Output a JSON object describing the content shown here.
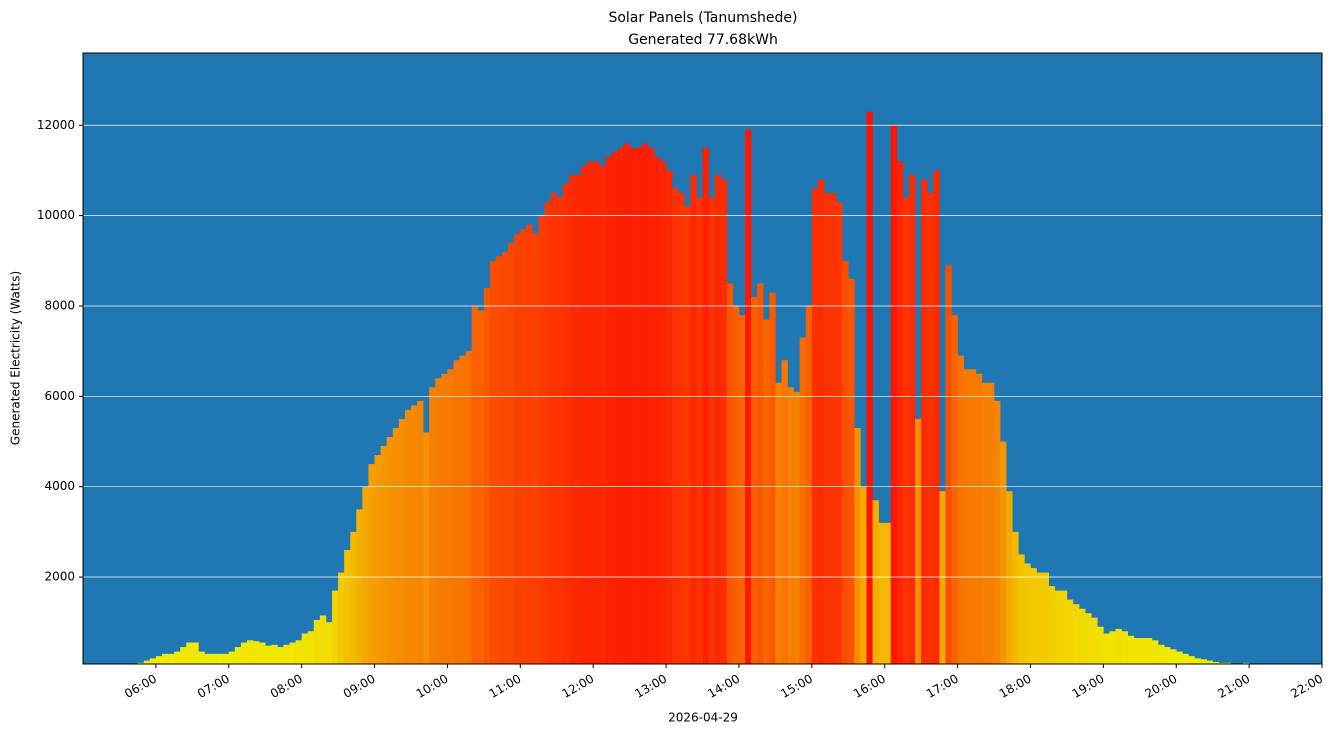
{
  "chart_data": {
    "type": "bar",
    "title": "Solar Panels (Tanumshede)",
    "subtitle": "Generated 77.68kWh",
    "x_label": "2026-04-29",
    "y_label": "Generated Electricity (Watts)",
    "x": [
      "05:10",
      "05:15",
      "05:20",
      "05:25",
      "05:30",
      "05:35",
      "05:40",
      "05:45",
      "05:50",
      "05:55",
      "06:00",
      "06:05",
      "06:10",
      "06:15",
      "06:20",
      "06:25",
      "06:30",
      "06:35",
      "06:40",
      "06:45",
      "06:50",
      "06:55",
      "07:00",
      "07:05",
      "07:10",
      "07:15",
      "07:20",
      "07:25",
      "07:30",
      "07:35",
      "07:40",
      "07:45",
      "07:50",
      "07:55",
      "08:00",
      "08:05",
      "08:10",
      "08:15",
      "08:20",
      "08:25",
      "08:30",
      "08:35",
      "08:40",
      "08:45",
      "08:50",
      "08:55",
      "09:00",
      "09:05",
      "09:10",
      "09:15",
      "09:20",
      "09:25",
      "09:30",
      "09:35",
      "09:40",
      "09:45",
      "09:50",
      "09:55",
      "10:00",
      "10:05",
      "10:10",
      "10:15",
      "10:20",
      "10:25",
      "10:30",
      "10:35",
      "10:40",
      "10:45",
      "10:50",
      "10:55",
      "11:00",
      "11:05",
      "11:10",
      "11:15",
      "11:20",
      "11:25",
      "11:30",
      "11:35",
      "11:40",
      "11:45",
      "11:50",
      "11:55",
      "12:00",
      "12:05",
      "12:10",
      "12:15",
      "12:20",
      "12:25",
      "12:30",
      "12:35",
      "12:40",
      "12:45",
      "12:50",
      "12:55",
      "13:00",
      "13:05",
      "13:10",
      "13:15",
      "13:20",
      "13:25",
      "13:30",
      "13:35",
      "13:40",
      "13:45",
      "13:50",
      "13:55",
      "14:00",
      "14:05",
      "14:10",
      "14:15",
      "14:20",
      "14:25",
      "14:30",
      "14:35",
      "14:40",
      "14:45",
      "14:50",
      "14:55",
      "15:00",
      "15:05",
      "15:10",
      "15:15",
      "15:20",
      "15:25",
      "15:30",
      "15:35",
      "15:40",
      "15:45",
      "15:50",
      "15:55",
      "16:00",
      "16:05",
      "16:10",
      "16:15",
      "16:20",
      "16:25",
      "16:30",
      "16:35",
      "16:40",
      "16:45",
      "16:50",
      "16:55",
      "17:00",
      "17:05",
      "17:10",
      "17:15",
      "17:20",
      "17:25",
      "17:30",
      "17:35",
      "17:40",
      "17:45",
      "17:50",
      "17:55",
      "18:00",
      "18:05",
      "18:10",
      "18:15",
      "18:20",
      "18:25",
      "18:30",
      "18:35",
      "18:40",
      "18:45",
      "18:50",
      "18:55",
      "19:00",
      "19:05",
      "19:10",
      "19:15",
      "19:20",
      "19:25",
      "19:30",
      "19:35",
      "19:40",
      "19:45",
      "19:50",
      "19:55",
      "20:00",
      "20:05",
      "20:10",
      "20:15",
      "20:20",
      "20:25",
      "20:30",
      "20:35",
      "20:40",
      "20:45",
      "20:50",
      "20:55"
    ],
    "values": [
      50,
      50,
      30,
      30,
      50,
      40,
      60,
      100,
      150,
      200,
      250,
      300,
      300,
      350,
      450,
      550,
      550,
      350,
      300,
      300,
      300,
      300,
      350,
      450,
      550,
      600,
      580,
      550,
      480,
      500,
      450,
      500,
      550,
      600,
      750,
      800,
      1050,
      1150,
      1000,
      1700,
      2100,
      2600,
      3000,
      3500,
      4000,
      4500,
      4700,
      4900,
      5100,
      5300,
      5500,
      5700,
      5800,
      5900,
      5200,
      6200,
      6400,
      6500,
      6600,
      6800,
      6900,
      7000,
      8000,
      7900,
      8400,
      9000,
      9100,
      9200,
      9400,
      9600,
      9700,
      9800,
      9600,
      10000,
      10300,
      10500,
      10400,
      10700,
      10900,
      10900,
      11100,
      11200,
      11200,
      11100,
      11300,
      11400,
      11500,
      11600,
      11500,
      11500,
      11600,
      11500,
      11300,
      11200,
      11000,
      10600,
      10500,
      10200,
      10900,
      10400,
      11500,
      10400,
      10900,
      10800,
      8500,
      8000,
      7800,
      11900,
      8200,
      8500,
      7700,
      8300,
      6300,
      6800,
      6200,
      6100,
      7300,
      8000,
      10600,
      10800,
      10500,
      10500,
      10300,
      9000,
      8600,
      5300,
      4000,
      12300,
      3700,
      3200,
      3200,
      12000,
      11200,
      10400,
      10900,
      5500,
      10800,
      10500,
      11000,
      3900,
      8900,
      7800,
      6900,
      6600,
      6600,
      6500,
      6300,
      6300,
      5900,
      5000,
      3900,
      3000,
      2500,
      2300,
      2200,
      2100,
      2100,
      1800,
      1700,
      1700,
      1500,
      1400,
      1300,
      1200,
      1100,
      900,
      750,
      800,
      850,
      800,
      700,
      650,
      650,
      650,
      600,
      500,
      450,
      400,
      350,
      300,
      250,
      200,
      180,
      150,
      120,
      100,
      100,
      60,
      40,
      100
    ],
    "bar_interval_minutes": 5,
    "color_low": "#f0f000",
    "color_high": "#ff1100",
    "background": "#1f77b4",
    "xlim": [
      "05:00",
      "22:00"
    ],
    "xticks": [
      "06:00",
      "07:00",
      "08:00",
      "09:00",
      "10:00",
      "11:00",
      "12:00",
      "13:00",
      "14:00",
      "15:00",
      "16:00",
      "17:00",
      "18:00",
      "19:00",
      "20:00",
      "21:00",
      "22:00"
    ],
    "ylim": [
      75,
      13600
    ],
    "yticks": [
      2000,
      4000,
      6000,
      8000,
      10000,
      12000
    ],
    "grid": true
  }
}
